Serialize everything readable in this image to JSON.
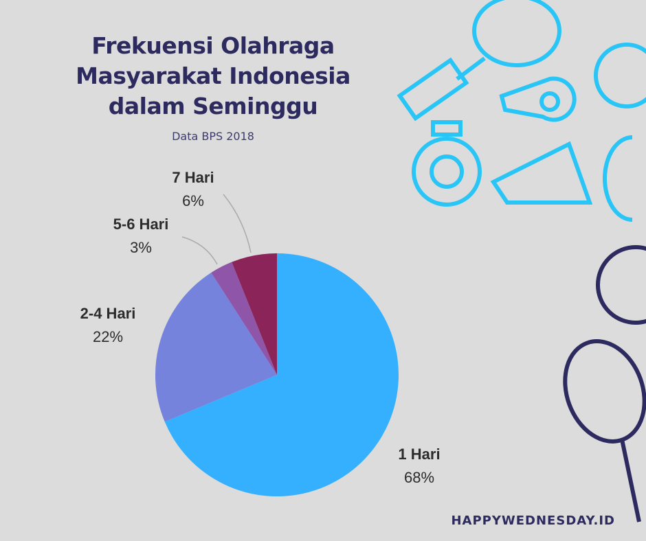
{
  "chart_data": {
    "type": "pie",
    "title": "Frekuensi Olahraga Masyarakat Indonesia dalam Seminggu",
    "subtitle": "Data BPS 2018",
    "source": "HAPPYWEDNESDAY.ID",
    "categories": [
      "1 Hari",
      "2-4 Hari",
      "5-6 Hari",
      "7 Hari"
    ],
    "values": [
      68,
      22,
      3,
      6
    ],
    "value_labels": [
      "68%",
      "22%",
      "3%",
      "6%"
    ],
    "colors": [
      "#35b0fe",
      "#7683dc",
      "#8e55a8",
      "#8b2458"
    ]
  }
}
